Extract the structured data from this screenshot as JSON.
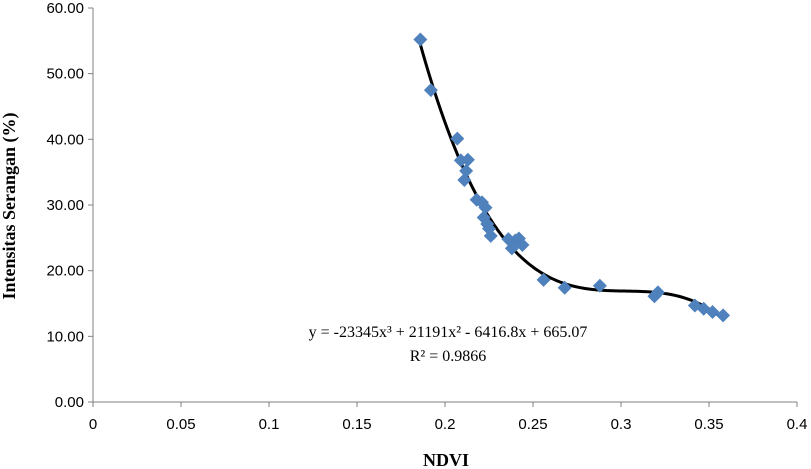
{
  "chart_data": {
    "type": "scatter",
    "xlabel": "NDVI",
    "ylabel": "Intensitas Serangan (%)",
    "xlim": [
      0,
      0.4
    ],
    "ylim": [
      0,
      60
    ],
    "x_ticks": [
      "0",
      "0.05",
      "0.1",
      "0.15",
      "0.2",
      "0.25",
      "0.3",
      "0.35",
      "0.4"
    ],
    "y_ticks": [
      "0.00",
      "10.00",
      "20.00",
      "30.00",
      "40.00",
      "50.00",
      "60.00"
    ],
    "grid": false,
    "legend": "none",
    "marker_color": "#4F81BD",
    "trend_color": "#000000",
    "series": [
      {
        "points": [
          [
            0.186,
            55.2
          ],
          [
            0.192,
            47.5
          ],
          [
            0.207,
            40.1
          ],
          [
            0.209,
            36.8
          ],
          [
            0.212,
            35.2
          ],
          [
            0.211,
            33.8
          ],
          [
            0.213,
            36.9
          ],
          [
            0.218,
            30.8
          ],
          [
            0.221,
            30.4
          ],
          [
            0.223,
            29.6
          ],
          [
            0.222,
            28.1
          ],
          [
            0.224,
            27.1
          ],
          [
            0.225,
            26.4
          ],
          [
            0.226,
            25.3
          ],
          [
            0.236,
            24.8
          ],
          [
            0.238,
            23.4
          ],
          [
            0.24,
            24.6
          ],
          [
            0.242,
            24.9
          ],
          [
            0.244,
            23.9
          ],
          [
            0.256,
            18.6
          ],
          [
            0.268,
            17.4
          ],
          [
            0.288,
            17.7
          ],
          [
            0.319,
            16.1
          ],
          [
            0.321,
            16.7
          ],
          [
            0.342,
            14.7
          ],
          [
            0.347,
            14.2
          ],
          [
            0.352,
            13.7
          ],
          [
            0.358,
            13.2
          ]
        ]
      }
    ],
    "trendline": {
      "type": "poly3",
      "coefficients": [
        -23345,
        21191,
        -6416.8,
        665.07
      ],
      "x_range": [
        0.186,
        0.358
      ],
      "equation": "y = -23345x³ + 21191x² - 6416.8x + 665.07",
      "r_squared": "R² = 0.9866"
    }
  }
}
